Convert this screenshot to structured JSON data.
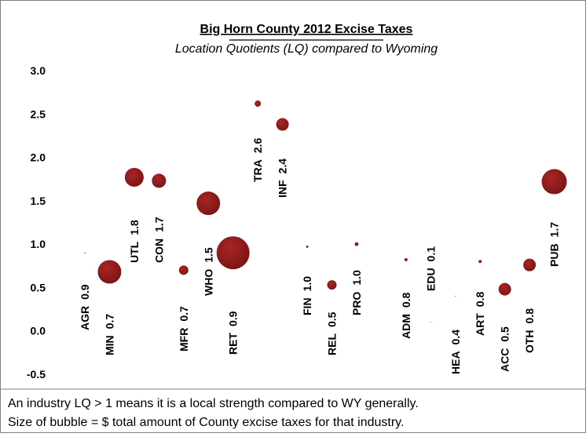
{
  "chart_data": {
    "type": "bubble",
    "title": "Big Horn County 2012 Excise Taxes",
    "subtitle": "Location Quotients (LQ) compared to Wyoming",
    "categories": [
      "AGR",
      "MIN",
      "UTL",
      "CON",
      "MFR",
      "WHO",
      "RET",
      "TRA",
      "INF",
      "FIN",
      "REL",
      "PRO",
      null,
      "ADM",
      "EDU",
      "HEA",
      "ART",
      "ACC",
      "OTH",
      "PUB"
    ],
    "values": [
      0.9,
      0.68,
      1.77,
      1.73,
      0.7,
      1.47,
      0.9,
      2.62,
      2.38,
      0.97,
      0.53,
      1.0,
      null,
      0.82,
      0.1,
      0.4,
      0.8,
      0.48,
      0.76,
      1.72
    ],
    "value_labels": [
      "0.9",
      "0.7",
      "1.8",
      "1.7",
      "0.7",
      "1.5",
      "0.9",
      "2.6",
      "2.4",
      "1.0",
      "0.5",
      "1.0",
      null,
      "0.8",
      "0.1",
      "0.4",
      "0.8",
      "0.5",
      "0.8",
      "1.7"
    ],
    "sizes": [
      0.5,
      225,
      144,
      81,
      36,
      225,
      441,
      16,
      64,
      2,
      36,
      6,
      null,
      4,
      0.2,
      0.3,
      4,
      64,
      64,
      256
    ],
    "color": "#8e1b1b",
    "ylim": [
      -0.5,
      3.0
    ],
    "yticks": [
      {
        "value": -0.5,
        "label": "-0.5"
      },
      {
        "value": 0,
        "label": "0.0"
      },
      {
        "value": 0.5,
        "label": "0.5"
      },
      {
        "value": 1,
        "label": "1.0"
      },
      {
        "value": 1.5,
        "label": "1.5"
      },
      {
        "value": 2,
        "label": "2.0"
      },
      {
        "value": 2.5,
        "label": "2.5"
      },
      {
        "value": 3,
        "label": "3.0"
      }
    ],
    "grid": false,
    "annotations": [
      "An industry LQ > 1 means it is a local strength compared to WY generally.",
      "Size of bubble = $ total amount of County excise taxes for that industry."
    ]
  }
}
